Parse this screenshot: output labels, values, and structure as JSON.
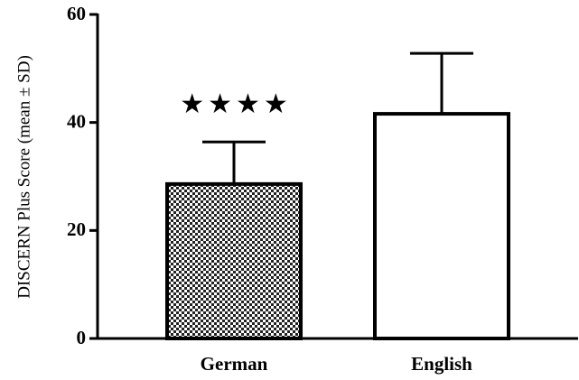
{
  "chart_data": {
    "type": "bar",
    "ylabel": "DISCERN Plus Score (mean ± SD)",
    "categories": [
      "German",
      "English"
    ],
    "values": [
      28.6,
      41.6
    ],
    "errors": [
      7.8,
      11.2
    ],
    "bar_fill": [
      "checkered",
      "white"
    ],
    "annotation": "★★★★",
    "ylim": [
      0,
      60
    ],
    "yticks": [
      0,
      20,
      40,
      60
    ]
  }
}
